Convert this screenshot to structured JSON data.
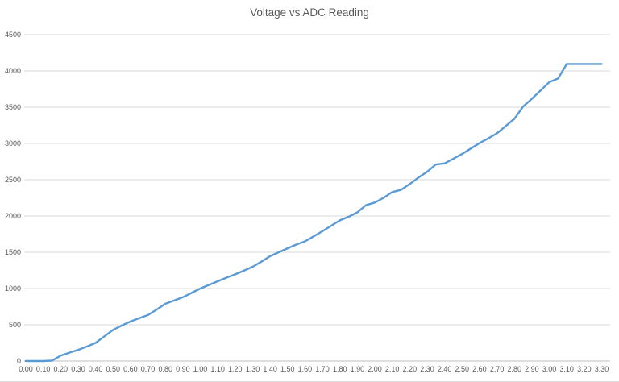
{
  "chart": {
    "title": "Voltage vs ADC Reading"
  },
  "chart_data": {
    "type": "line",
    "title": "Voltage vs ADC Reading",
    "xlabel": "",
    "ylabel": "",
    "legend_position": "none",
    "grid": "horizontal",
    "xlim": [
      0.0,
      3.3
    ],
    "ylim": [
      0,
      4500
    ],
    "y_ticks": [
      0,
      500,
      1000,
      1500,
      2000,
      2500,
      3000,
      3500,
      4000,
      4500
    ],
    "x_tick_labels": [
      "0.00",
      "0.10",
      "0.20",
      "0.30",
      "0.40",
      "0.50",
      "0.60",
      "0.70",
      "0.80",
      "0.90",
      "1.00",
      "1.10",
      "1.20",
      "1.30",
      "1.40",
      "1.50",
      "1.60",
      "1.70",
      "1.80",
      "1.90",
      "2.00",
      "2.10",
      "2.20",
      "2.30",
      "2.40",
      "2.50",
      "2.60",
      "2.70",
      "2.80",
      "2.90",
      "3.00",
      "3.10",
      "3.20",
      "3.30"
    ],
    "x": [
      0.0,
      0.05,
      0.1,
      0.15,
      0.2,
      0.25,
      0.3,
      0.35,
      0.4,
      0.45,
      0.5,
      0.55,
      0.6,
      0.65,
      0.7,
      0.75,
      0.8,
      0.85,
      0.9,
      0.95,
      1.0,
      1.05,
      1.1,
      1.15,
      1.2,
      1.25,
      1.3,
      1.35,
      1.4,
      1.45,
      1.5,
      1.55,
      1.6,
      1.65,
      1.7,
      1.75,
      1.8,
      1.85,
      1.9,
      1.95,
      2.0,
      2.05,
      2.1,
      2.15,
      2.2,
      2.25,
      2.3,
      2.35,
      2.4,
      2.45,
      2.5,
      2.55,
      2.6,
      2.65,
      2.7,
      2.75,
      2.8,
      2.85,
      2.9,
      2.95,
      3.0,
      3.05,
      3.1,
      3.15,
      3.2,
      3.25,
      3.3
    ],
    "values": [
      0,
      0,
      0,
      6,
      75,
      115,
      155,
      200,
      250,
      340,
      430,
      490,
      545,
      590,
      635,
      710,
      790,
      835,
      880,
      940,
      1000,
      1050,
      1100,
      1150,
      1195,
      1245,
      1300,
      1370,
      1445,
      1500,
      1555,
      1605,
      1650,
      1720,
      1790,
      1865,
      1940,
      1990,
      2050,
      2150,
      2185,
      2250,
      2330,
      2360,
      2440,
      2530,
      2610,
      2710,
      2725,
      2790,
      2855,
      2930,
      3005,
      3070,
      3140,
      3240,
      3340,
      3510,
      3615,
      3730,
      3845,
      3895,
      4095,
      4095,
      4095,
      4095,
      4095
    ],
    "series_name": "ADC Reading",
    "line_color": "#5b9bd5",
    "text_color": "#595959",
    "gridline_color": "#d9d9d9",
    "axis_line_color": "#bfbfbf",
    "background_color": "#ffffff"
  }
}
